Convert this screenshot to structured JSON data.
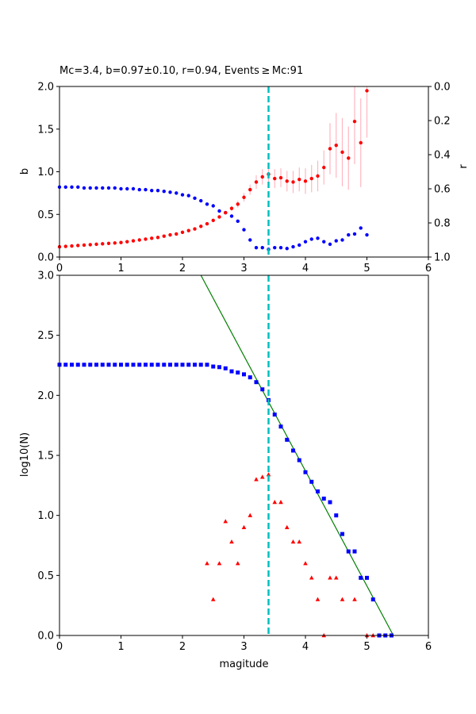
{
  "chart_data": [
    {
      "type": "scatter",
      "title": "Mc=3.4, b=0.97±0.10, r=0.94, Events ≥ Mc:91",
      "xlabel": "",
      "ylabel": "b",
      "ylabel_right": "r",
      "xlim": [
        0,
        6
      ],
      "ylim": [
        0,
        2.0
      ],
      "ylim_right": [
        1.0,
        0.0
      ],
      "x_ticks": [
        "0",
        "1",
        "2",
        "3",
        "4",
        "5",
        "6"
      ],
      "y_ticks": [
        "0.0",
        "0.5",
        "1.0",
        "1.5",
        "2.0"
      ],
      "y_ticks_right": [
        "0.0",
        "0.2",
        "0.4",
        "0.6",
        "0.8",
        "1.0"
      ],
      "mc_line": 3.4,
      "colors": {
        "b": "#ff0000",
        "b_err": "#ffb6c1",
        "r": "#0000ff",
        "mc": "#00bfbf"
      },
      "b_series": {
        "x": [
          0.0,
          0.1,
          0.2,
          0.3,
          0.4,
          0.5,
          0.6,
          0.7,
          0.8,
          0.9,
          1.0,
          1.1,
          1.2,
          1.3,
          1.4,
          1.5,
          1.6,
          1.7,
          1.8,
          1.9,
          2.0,
          2.1,
          2.2,
          2.3,
          2.4,
          2.5,
          2.6,
          2.7,
          2.8,
          2.9,
          3.0,
          3.1,
          3.2,
          3.3,
          3.4,
          3.5,
          3.6,
          3.7,
          3.8,
          3.9,
          4.0,
          4.1,
          4.2,
          4.3,
          4.4,
          4.5,
          4.6,
          4.7,
          4.8,
          4.9,
          5.0
        ],
        "y": [
          0.12,
          0.125,
          0.13,
          0.135,
          0.14,
          0.145,
          0.15,
          0.155,
          0.16,
          0.165,
          0.17,
          0.18,
          0.19,
          0.2,
          0.21,
          0.22,
          0.23,
          0.245,
          0.26,
          0.27,
          0.29,
          0.31,
          0.33,
          0.36,
          0.39,
          0.43,
          0.47,
          0.52,
          0.57,
          0.62,
          0.7,
          0.79,
          0.88,
          0.94,
          0.97,
          0.92,
          0.93,
          0.89,
          0.88,
          0.91,
          0.89,
          0.92,
          0.95,
          1.05,
          1.27,
          1.31,
          1.23,
          1.16,
          1.59,
          1.34,
          1.95
        ],
        "err": [
          0.01,
          0.01,
          0.01,
          0.01,
          0.01,
          0.01,
          0.01,
          0.01,
          0.01,
          0.01,
          0.01,
          0.01,
          0.01,
          0.01,
          0.01,
          0.01,
          0.01,
          0.01,
          0.01,
          0.01,
          0.01,
          0.01,
          0.01,
          0.01,
          0.01,
          0.02,
          0.02,
          0.02,
          0.03,
          0.04,
          0.05,
          0.06,
          0.08,
          0.09,
          0.1,
          0.11,
          0.11,
          0.12,
          0.13,
          0.14,
          0.15,
          0.16,
          0.18,
          0.2,
          0.3,
          0.38,
          0.4,
          0.37,
          0.5,
          0.52,
          0.55
        ]
      },
      "r_series": {
        "x": [
          0.0,
          0.1,
          0.2,
          0.3,
          0.4,
          0.5,
          0.6,
          0.7,
          0.8,
          0.9,
          1.0,
          1.1,
          1.2,
          1.3,
          1.4,
          1.5,
          1.6,
          1.7,
          1.8,
          1.9,
          2.0,
          2.1,
          2.2,
          2.3,
          2.4,
          2.5,
          2.6,
          2.7,
          2.8,
          2.9,
          3.0,
          3.1,
          3.2,
          3.3,
          3.4,
          3.5,
          3.6,
          3.7,
          3.8,
          3.9,
          4.0,
          4.1,
          4.2,
          4.3,
          4.4,
          4.5,
          4.6,
          4.7,
          4.8,
          4.9,
          5.0
        ],
        "y": [
          0.59,
          0.59,
          0.59,
          0.59,
          0.595,
          0.595,
          0.595,
          0.595,
          0.595,
          0.595,
          0.6,
          0.6,
          0.6,
          0.605,
          0.605,
          0.61,
          0.61,
          0.615,
          0.62,
          0.625,
          0.635,
          0.64,
          0.655,
          0.67,
          0.69,
          0.7,
          0.73,
          0.74,
          0.76,
          0.79,
          0.84,
          0.9,
          0.945,
          0.945,
          0.955,
          0.945,
          0.945,
          0.95,
          0.94,
          0.93,
          0.91,
          0.895,
          0.89,
          0.91,
          0.925,
          0.905,
          0.9,
          0.87,
          0.865,
          0.83,
          0.87
        ]
      }
    },
    {
      "type": "scatter",
      "title": "",
      "xlabel": "magitude",
      "ylabel": "log10(N)",
      "xlim": [
        0,
        6
      ],
      "ylim": [
        0,
        3.0
      ],
      "x_ticks": [
        "0",
        "1",
        "2",
        "3",
        "4",
        "5",
        "6"
      ],
      "y_ticks": [
        "0.0",
        "0.5",
        "1.0",
        "1.5",
        "2.0",
        "2.5",
        "3.0"
      ],
      "mc_line": 3.4,
      "colors": {
        "cumulative": "#0000ff",
        "noncumulative": "#ff0000",
        "fit": "#008000",
        "mc": "#00bfbf"
      },
      "fit_line": {
        "x": [
          2.3,
          5.43
        ],
        "y": [
          3.0,
          0.0
        ]
      },
      "cumulative": {
        "x": [
          0.0,
          0.1,
          0.2,
          0.3,
          0.4,
          0.5,
          0.6,
          0.7,
          0.8,
          0.9,
          1.0,
          1.1,
          1.2,
          1.3,
          1.4,
          1.5,
          1.6,
          1.7,
          1.8,
          1.9,
          2.0,
          2.1,
          2.2,
          2.3,
          2.4,
          2.5,
          2.6,
          2.7,
          2.8,
          2.9,
          3.0,
          3.1,
          3.2,
          3.3,
          3.4,
          3.5,
          3.6,
          3.7,
          3.8,
          3.9,
          4.0,
          4.1,
          4.2,
          4.3,
          4.4,
          4.5,
          4.6,
          4.7,
          4.8,
          4.9,
          5.0,
          5.1,
          5.2,
          5.3,
          5.4
        ],
        "y": [
          2.255,
          2.255,
          2.255,
          2.255,
          2.255,
          2.255,
          2.255,
          2.255,
          2.255,
          2.255,
          2.255,
          2.255,
          2.255,
          2.255,
          2.255,
          2.255,
          2.255,
          2.255,
          2.255,
          2.255,
          2.255,
          2.255,
          2.255,
          2.255,
          2.255,
          2.24,
          2.235,
          2.225,
          2.2,
          2.19,
          2.175,
          2.15,
          2.11,
          2.05,
          1.96,
          1.84,
          1.74,
          1.63,
          1.54,
          1.46,
          1.36,
          1.28,
          1.2,
          1.14,
          1.11,
          1.0,
          0.845,
          0.7,
          0.7,
          0.48,
          0.48,
          0.3,
          0.0,
          0.0,
          0.0
        ]
      },
      "noncumulative": {
        "x": [
          2.4,
          2.5,
          2.6,
          2.7,
          2.8,
          2.9,
          3.0,
          3.1,
          3.2,
          3.3,
          3.4,
          3.5,
          3.6,
          3.7,
          3.8,
          3.9,
          4.0,
          4.1,
          4.2,
          4.3,
          4.4,
          4.5,
          4.6,
          4.8,
          5.0,
          5.1
        ],
        "y": [
          0.6,
          0.3,
          0.6,
          0.95,
          0.78,
          0.6,
          0.9,
          1.0,
          1.3,
          1.32,
          1.34,
          1.11,
          1.11,
          0.9,
          0.78,
          0.78,
          0.6,
          0.48,
          0.3,
          0.0,
          0.48,
          0.48,
          0.3,
          0.3,
          0.0,
          0.0
        ]
      }
    }
  ]
}
